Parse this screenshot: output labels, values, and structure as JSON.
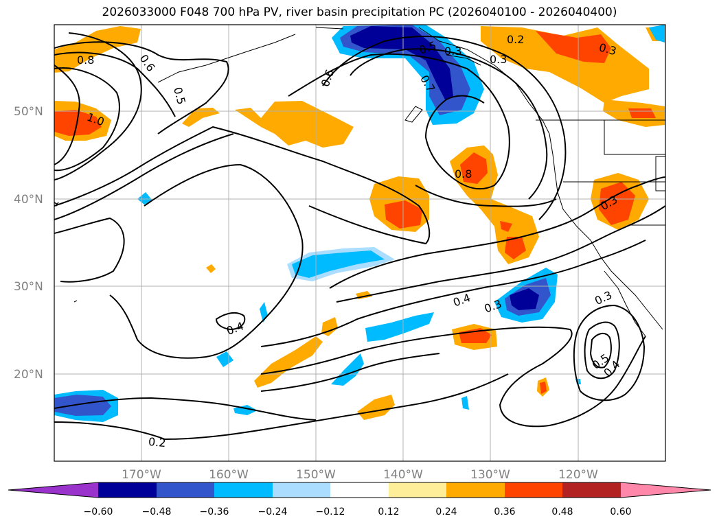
{
  "title": "2026033000 F048 700 hPa PV, river basin precipitation PC (2026040100 - 2026040400)",
  "map": {
    "lon_range": [
      -180,
      -110
    ],
    "lat_range": [
      10,
      60
    ],
    "lat_labels": [
      "50°N",
      "40°N",
      "30°N",
      "20°N"
    ],
    "lon_labels": [
      "170°W",
      "160°W",
      "150°W",
      "140°W",
      "130°W",
      "120°W"
    ]
  },
  "contour_labels": [
    "0.8",
    "0.6",
    "0.5",
    "1.0",
    "1",
    "0.6",
    "0.5",
    "0.3",
    "0.2",
    "0.3",
    "0.3",
    "0.7",
    "0.8",
    "0.3",
    "0.4",
    "0.3",
    "0.4",
    "0.3",
    "0.5",
    "0.4",
    "0.2"
  ],
  "colorbar": {
    "colors": [
      "#9933cc",
      "#000099",
      "#3355cc",
      "#00bbff",
      "#aaddff",
      "#ffffff",
      "#ffee99",
      "#ffaa00",
      "#ff4400",
      "#b22222",
      "#ff88aa"
    ],
    "ticks": [
      "−0.60",
      "−0.48",
      "−0.36",
      "−0.24",
      "−0.12",
      "0.12",
      "0.24",
      "0.36",
      "0.48",
      "0.60"
    ]
  }
}
